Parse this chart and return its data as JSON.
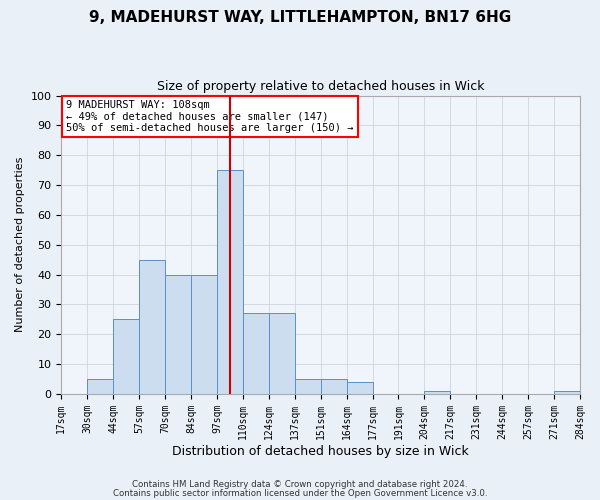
{
  "title": "9, MADEHURST WAY, LITTLEHAMPTON, BN17 6HG",
  "subtitle": "Size of property relative to detached houses in Wick",
  "xlabel": "Distribution of detached houses by size in Wick",
  "ylabel": "Number of detached properties",
  "footnote1": "Contains HM Land Registry data © Crown copyright and database right 2024.",
  "footnote2": "Contains public sector information licensed under the Open Government Licence v3.0.",
  "annotation_line1": "9 MADEHURST WAY: 108sqm",
  "annotation_line2": "← 49% of detached houses are smaller (147)",
  "annotation_line3": "50% of semi-detached houses are larger (150) →",
  "bar_color": "#ccddf0",
  "bar_edge_color": "#5b8fc9",
  "vline_color": "#cc0000",
  "vline_x_index": 6.5,
  "bin_labels": [
    "17sqm",
    "30sqm",
    "44sqm",
    "57sqm",
    "70sqm",
    "84sqm",
    "97sqm",
    "110sqm",
    "124sqm",
    "137sqm",
    "151sqm",
    "164sqm",
    "177sqm",
    "191sqm",
    "204sqm",
    "217sqm",
    "231sqm",
    "244sqm",
    "257sqm",
    "271sqm",
    "284sqm"
  ],
  "bar_heights": [
    0,
    5,
    25,
    45,
    40,
    40,
    75,
    27,
    27,
    5,
    5,
    4,
    0,
    0,
    1,
    0,
    0,
    0,
    0,
    1
  ],
  "ylim": [
    0,
    100
  ],
  "yticks": [
    0,
    10,
    20,
    30,
    40,
    50,
    60,
    70,
    80,
    90,
    100
  ],
  "bg_color": "#eaf0f8",
  "plot_bg_color": "#f0f4fb",
  "grid_color": "#c8d0dc",
  "title_fontsize": 11,
  "subtitle_fontsize": 9
}
